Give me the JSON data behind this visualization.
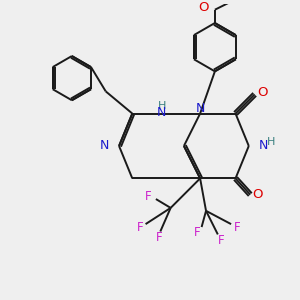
{
  "bg_color": "#efefef",
  "bond_color": "#1a1a1a",
  "N_color": "#1a1acc",
  "O_color": "#dd0000",
  "F_color": "#cc22cc",
  "NH_color": "#3a8080",
  "figsize": [
    3.0,
    3.0
  ],
  "dpi": 100,
  "xlim": [
    0,
    10
  ],
  "ylim": [
    0,
    10
  ]
}
